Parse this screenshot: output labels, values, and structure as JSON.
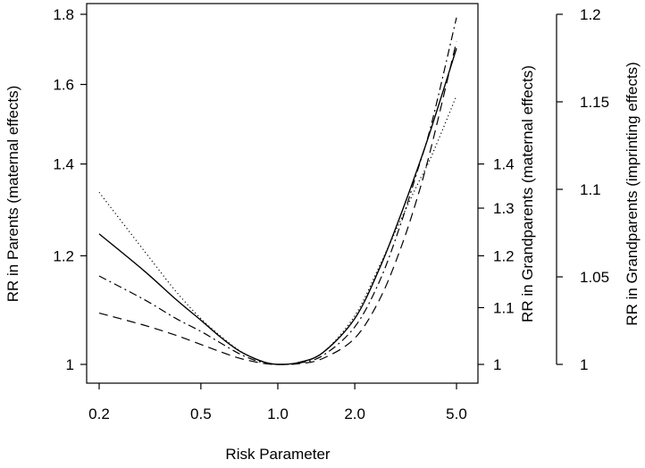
{
  "chart_data": {
    "type": "line",
    "title": "",
    "xlabel": "Risk Parameter",
    "x_scale": "log",
    "xlim": [
      0.2,
      5.0
    ],
    "x_ticks": [
      0.2,
      0.5,
      1.0,
      2.0,
      5.0
    ],
    "x_tick_labels": [
      "0.2",
      "0.5",
      "1.0",
      "2.0",
      "5.0"
    ],
    "y_axes": [
      {
        "id": "parents",
        "side": "left",
        "label": "RR in Parents (maternal effects)",
        "ticks": [
          1,
          1.2,
          1.4,
          1.6,
          1.8
        ],
        "tick_labels": [
          "1",
          "1.2",
          "1.4",
          "1.6",
          "1.8"
        ],
        "ylim": [
          1,
          1.8
        ],
        "scale": "log"
      },
      {
        "id": "grandparents-maternal",
        "side": "right",
        "label": "RR in Grandparents (maternal effects)",
        "ticks": [
          1,
          1.1,
          1.2,
          1.3,
          1.4
        ],
        "tick_labels": [
          "1",
          "1.1",
          "1.2",
          "1.3",
          "1.4"
        ]
      },
      {
        "id": "grandparents-imprinting",
        "side": "right",
        "label": "RR in Grandparents (imprinting effects)",
        "ticks": [
          1,
          1.05,
          1.1,
          1.15,
          1.2
        ],
        "tick_labels": [
          "1",
          "1.05",
          "1.1",
          "1.15",
          "1.2"
        ]
      }
    ],
    "x": [
      0.2,
      0.3,
      0.4,
      0.5,
      0.6,
      0.7,
      0.8,
      0.9,
      1.0,
      1.2,
      1.5,
      2.0,
      2.5,
      3.0,
      3.5,
      4.0,
      5.0
    ],
    "series": [
      {
        "style": "solid",
        "values": [
          1.245,
          1.17,
          1.115,
          1.077,
          1.046,
          1.024,
          1.011,
          1.003,
          1.0,
          1.003,
          1.02,
          1.08,
          1.175,
          1.28,
          1.385,
          1.49,
          1.7
        ]
      },
      {
        "style": "dotted",
        "values": [
          1.335,
          1.21,
          1.13,
          1.08,
          1.048,
          1.025,
          1.011,
          1.003,
          1.0,
          1.003,
          1.02,
          1.085,
          1.18,
          1.27,
          1.35,
          1.42,
          1.57
        ]
      },
      {
        "style": "dashdot",
        "values": [
          1.16,
          1.115,
          1.08,
          1.057,
          1.036,
          1.019,
          1.008,
          1.002,
          1.0,
          1.002,
          1.015,
          1.065,
          1.15,
          1.26,
          1.38,
          1.5,
          1.79
        ]
      },
      {
        "style": "dashed",
        "values": [
          1.09,
          1.068,
          1.05,
          1.034,
          1.021,
          1.011,
          1.005,
          1.001,
          1.0,
          1.001,
          1.01,
          1.045,
          1.115,
          1.21,
          1.32,
          1.445,
          1.72
        ]
      }
    ]
  }
}
